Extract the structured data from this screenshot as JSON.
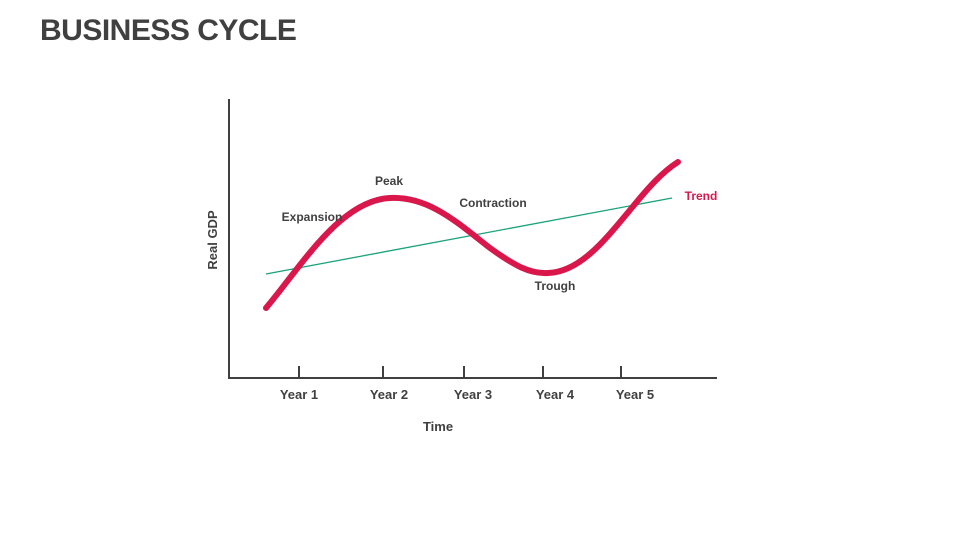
{
  "title": "BUSINESS CYCLE",
  "diagram": {
    "y_axis_label": "Real GDP",
    "x_axis_label": "Time",
    "x_ticks": [
      "Year 1",
      "Year 2",
      "Year 3",
      "Year 4",
      "Year 5"
    ],
    "phases": {
      "expansion": "Expansion",
      "peak": "Peak",
      "contraction": "Contraction",
      "trough": "Trough"
    },
    "trend_label": "Trend",
    "colors": {
      "cycle_curve": "#D9174B",
      "trend_line": "#1AA37A",
      "trend_label": "#D9174B",
      "axis": "#404040",
      "text": "#404040"
    }
  }
}
